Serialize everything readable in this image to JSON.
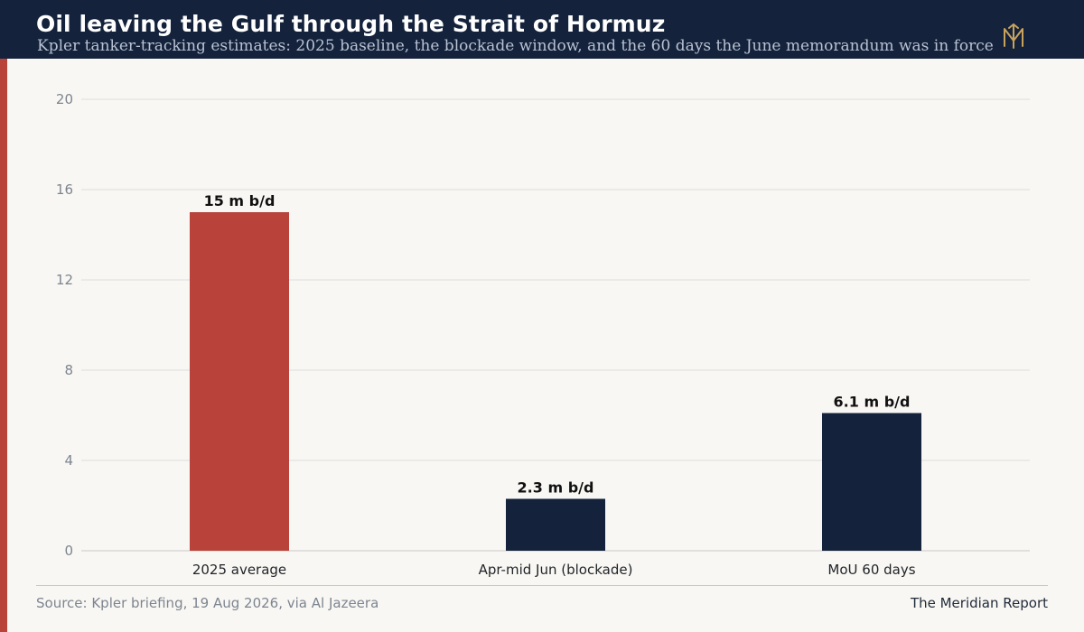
{
  "header": {
    "title": "Oil leaving the Gulf through the Strait of Hormuz",
    "subtitle": "Kpler tanker-tracking estimates: 2025 baseline, the blockade window, and the 60 days the June memorandum was in force",
    "logo_icon": "meridian-monogram-icon"
  },
  "footer": {
    "source": "Source: Kpler briefing, 19 Aug 2026, via Al Jazeera",
    "brand": "The Meridian Report"
  },
  "colors": {
    "header_bg": "#14223b",
    "accent": "#b9433a",
    "bar_default": "#14223b",
    "bar_highlight": "#b9433a",
    "background": "#f9f7f3"
  },
  "chart_data": {
    "type": "bar",
    "title": "Oil leaving the Gulf through the Strait of Hormuz",
    "subtitle": "Kpler tanker-tracking estimates: 2025 baseline, the blockade window, and the 60 days the June memorandum was in force",
    "xlabel": "",
    "ylabel": "",
    "categories": [
      "2025 average",
      "Apr-mid Jun (blockade)",
      "MoU 60 days"
    ],
    "values": [
      15,
      2.3,
      6.1
    ],
    "data_labels": [
      "15 m b/d",
      "2.3 m b/d",
      "6.1 m b/d"
    ],
    "bar_colors": [
      "#b9433a",
      "#14223b",
      "#14223b"
    ],
    "ylim": [
      0,
      20
    ],
    "yticks": [
      0,
      4,
      8,
      12,
      16,
      20
    ],
    "grid": true,
    "legend": "none"
  }
}
